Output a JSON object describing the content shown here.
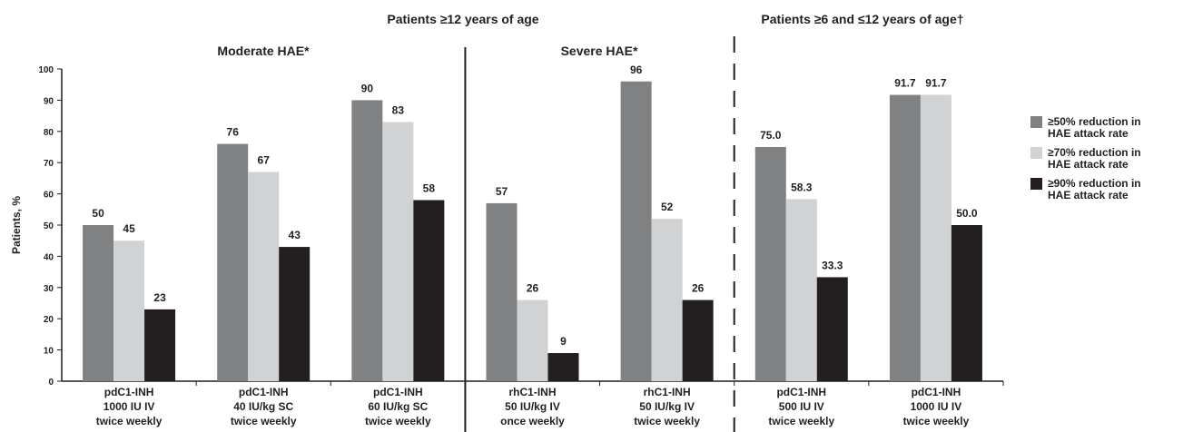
{
  "chart_data": {
    "type": "bar",
    "annotations": [
      "Patients ≥12 years of age",
      "Patients ≥6 and ≤12 years of age†",
      "Moderate HAE*",
      "Severe HAE*"
    ],
    "y_label": "Patients, %",
    "categories": [
      [
        "pdC1-INH",
        "1000 IU IV",
        "twice weekly"
      ],
      [
        "pdC1-INH",
        "40 IU/kg SC",
        "twice weekly"
      ],
      [
        "pdC1-INH",
        "60 IU/kg SC",
        "twice weekly"
      ],
      [
        "rhC1-INH",
        "50 IU/kg IV",
        "once weekly"
      ],
      [
        "rhC1-INH",
        "50 IU/kg IV",
        "twice weekly"
      ],
      [
        "pdC1-INH",
        "500 IU IV",
        "twice weekly"
      ],
      [
        "pdC1-INH",
        "1000 IU IV",
        "twice weekly"
      ]
    ],
    "series": [
      {
        "name": "≥50% reduction in HAE attack rate",
        "color": "#7f8183",
        "values": [
          50,
          76,
          90,
          57,
          96,
          75,
          91.7
        ],
        "value_labels": [
          "50",
          "76",
          "90",
          "57",
          "96",
          "75.0",
          "91.7"
        ]
      },
      {
        "name": "≥70% reduction in HAE attack rate",
        "color": "#d0d2d4",
        "values": [
          45,
          67,
          83,
          26,
          52,
          58.3,
          91.7
        ],
        "value_labels": [
          "45",
          "67",
          "83",
          "26",
          "52",
          "58.3",
          "91.7"
        ]
      },
      {
        "name": "≥90% reduction in HAE attack rate",
        "color": "#231f20",
        "values": [
          23,
          43,
          58,
          9,
          26,
          33.3,
          50
        ],
        "value_labels": [
          "23",
          "43",
          "58",
          "9",
          "26",
          "33.3",
          "50.0"
        ]
      }
    ],
    "ylim": [
      0,
      100
    ],
    "yticks": [
      0,
      10,
      20,
      30,
      40,
      50,
      60,
      70,
      80,
      90,
      100
    ],
    "grid": false,
    "legend": "right"
  }
}
